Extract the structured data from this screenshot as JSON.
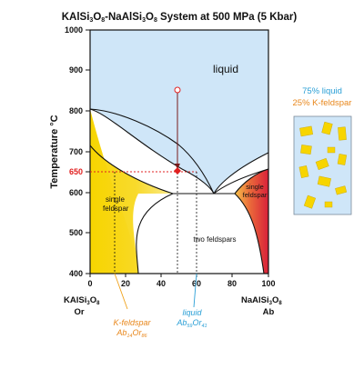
{
  "title": {
    "prefix": "KAlSi",
    "s1": "3",
    "m1": "O",
    "s2": "8",
    "m2": "-NaAlSi",
    "s3": "3",
    "m3": "O",
    "s4": "8",
    "suffix": " System at 500 MPa (5 Kbar)"
  },
  "axes": {
    "ylabel": "Temperature °C",
    "y_ticks": [
      "1000",
      "900",
      "800",
      "700",
      "650",
      "600",
      "500",
      "400"
    ],
    "x_ticks": [
      "0",
      "20",
      "40",
      "60",
      "80",
      "100"
    ],
    "ylim": [
      400,
      1000
    ],
    "xlim": [
      0,
      100
    ],
    "left_end": {
      "name_a": "KAlSi",
      "sub_a": "3",
      "name_b": "O",
      "sub_b": "8",
      "abbr": "Or"
    },
    "right_end": {
      "name_a": "NaAlSi",
      "sub_a": "3",
      "name_b": "O",
      "sub_b": "8",
      "abbr": "Ab"
    }
  },
  "regions": {
    "liquid": "liquid",
    "single_left_1": "single",
    "single_left_2": "feldspar",
    "single_right_1": "single",
    "single_right_2": "feldspar",
    "two_feldspars": "two feldspars"
  },
  "annotations": {
    "kfeldspar_label": "K-feldspar",
    "kfeldspar_comp_a": "Ab",
    "kfeldspar_sub_a": "14",
    "kfeldspar_comp_b": "Or",
    "kfeldspar_sub_b": "86",
    "liquid_label": "liquid",
    "liquid_comp_a": "Ab",
    "liquid_sub_a": "59",
    "liquid_comp_b": "Or",
    "liquid_sub_b": "41"
  },
  "legend": {
    "line1": "75% liquid",
    "line2": "25% K-feldspar"
  },
  "chart_data": {
    "type": "phase-diagram",
    "isotherm_c": 650,
    "bulk_composition_ab": 48,
    "start_temperature_c": 905,
    "kfeldspar_composition_ab": 14,
    "liquid_composition_ab": 59,
    "liquid_fraction_pct": 75,
    "kfeldspar_fraction_pct": 25
  },
  "colors": {
    "liquid_fill": "#cfe6f8",
    "kfeldspar_yellow": "#f7d500",
    "albite_red": "#d8203a",
    "orange_text": "#e8871c",
    "blue_text": "#2a9fd6",
    "marker_red": "#e02020"
  }
}
